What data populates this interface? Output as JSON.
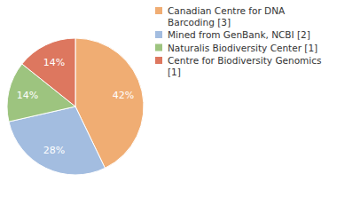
{
  "chart_data": {
    "type": "pie",
    "categories": [
      "Canadian Centre for DNA Barcoding [3]",
      "Mined from GenBank, NCBI [2]",
      "Naturalis Biodiversity Center [1]",
      "Centre for Biodiversity Genomics [1]"
    ],
    "values": [
      42,
      28,
      14,
      14
    ],
    "value_labels": [
      "42%",
      "28%",
      "14%",
      "14%"
    ],
    "colors": [
      "#f0ad73",
      "#a3bde0",
      "#9dc47f",
      "#dd775f"
    ],
    "data_labels": true,
    "legend": "top-right"
  }
}
